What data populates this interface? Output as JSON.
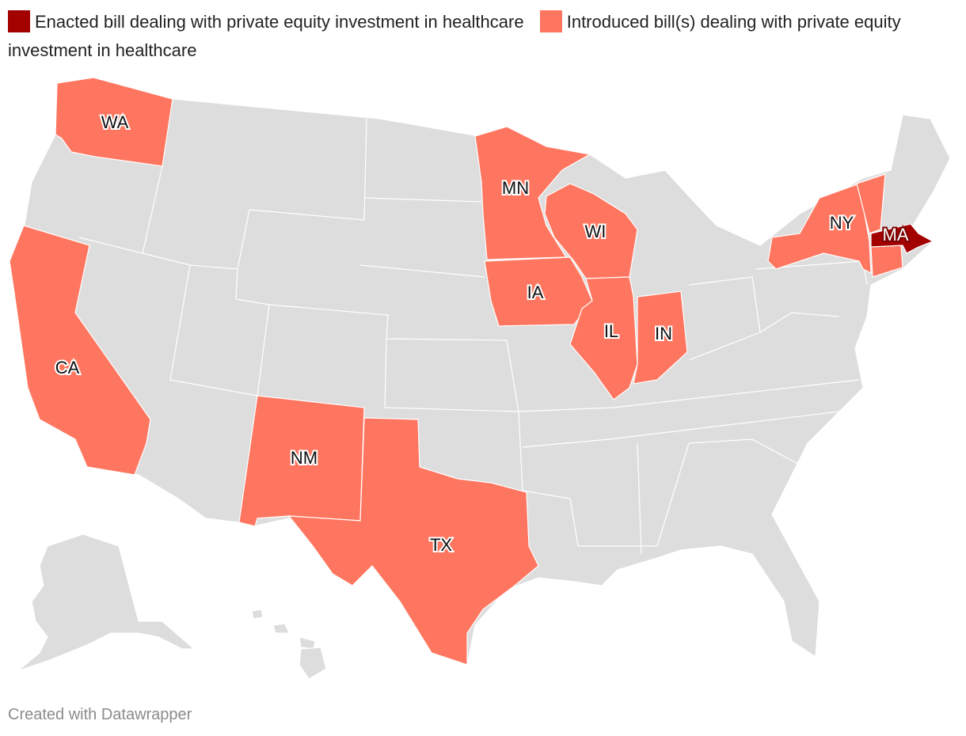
{
  "legend": [
    {
      "label": "Enacted bill dealing with private equity investment in healthcare",
      "color": "#a30000"
    },
    {
      "label": "Introduced bill(s) dealing with private equity investment in healthcare",
      "color": "#ff7660"
    }
  ],
  "colors": {
    "default": "#dddddd",
    "enacted": "#a30000",
    "introduced": "#ff7660"
  },
  "states": {
    "WA": {
      "label": "WA",
      "status": "introduced"
    },
    "CA": {
      "label": "CA",
      "status": "introduced"
    },
    "NM": {
      "label": "NM",
      "status": "introduced"
    },
    "TX": {
      "label": "TX",
      "status": "introduced"
    },
    "MN": {
      "label": "MN",
      "status": "introduced"
    },
    "IA": {
      "label": "IA",
      "status": "introduced"
    },
    "WI": {
      "label": "WI",
      "status": "introduced"
    },
    "IL": {
      "label": "IL",
      "status": "introduced"
    },
    "IN": {
      "label": "IN",
      "status": "introduced"
    },
    "NY": {
      "label": "NY",
      "status": "introduced"
    },
    "VT": {
      "label": "",
      "status": "introduced"
    },
    "CT": {
      "label": "",
      "status": "introduced"
    },
    "MA": {
      "label": "MA",
      "status": "enacted"
    }
  },
  "footer": "Created with Datawrapper"
}
